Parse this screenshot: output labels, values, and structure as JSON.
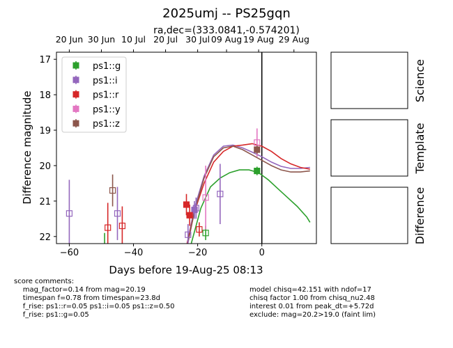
{
  "title": "2025umj -- PS25gqn",
  "subtitle": "ra,dec=(333.0841,-0.574201)",
  "chart_data": {
    "type": "scatter",
    "xlabel": "Days before 19-Aug-25 08:13",
    "ylabel": "Difference magnitude",
    "xlim": [
      -64,
      17
    ],
    "ylim": [
      22.2,
      16.8
    ],
    "y_inverted": true,
    "x_ticks": [
      -60,
      -40,
      -20,
      0
    ],
    "x_tick_labels": [
      "−60",
      "−40",
      "−20",
      "0"
    ],
    "y_ticks": [
      17,
      18,
      19,
      20,
      21,
      22
    ],
    "top_axis": {
      "ticks": [
        -60,
        -50,
        -40,
        -30,
        -20,
        -11,
        -1,
        10
      ],
      "labels": [
        "20 Jun",
        "30 Jun",
        "10 Jul",
        "20 Jul",
        "30 Jul",
        "09 Aug",
        "19 Aug",
        "29 Aug"
      ]
    },
    "reference_line_x": 0,
    "legend_position": "upper-left",
    "series": [
      {
        "name": "ps1::g",
        "color": "#2ca02c",
        "points": [
          {
            "x": -17.5,
            "y": 21.9,
            "err": 0.2,
            "filled": false
          },
          {
            "x": -1.5,
            "y": 20.15,
            "err": 0.12,
            "filled": true
          },
          {
            "x": -49,
            "y": 22.3,
            "err": 0.4,
            "filled": false
          }
        ],
        "model": [
          [
            -25,
            23.2
          ],
          [
            -22,
            22.2
          ],
          [
            -19,
            21.2
          ],
          [
            -16,
            20.6
          ],
          [
            -13,
            20.35
          ],
          [
            -10,
            20.2
          ],
          [
            -7,
            20.12
          ],
          [
            -4,
            20.12
          ],
          [
            -1,
            20.2
          ],
          [
            2,
            20.4
          ],
          [
            5,
            20.65
          ],
          [
            8,
            20.9
          ],
          [
            11,
            21.15
          ],
          [
            14,
            21.45
          ],
          [
            15,
            21.6
          ]
        ]
      },
      {
        "name": "ps1::i",
        "color": "#9467bd",
        "points": [
          {
            "x": -60,
            "y": 21.35,
            "err": 0.95,
            "filled": false
          },
          {
            "x": -45,
            "y": 21.35,
            "err": 0.75,
            "filled": false
          },
          {
            "x": -20.5,
            "y": 21.2,
            "err": 0.3,
            "filled": false
          },
          {
            "x": -23,
            "y": 21.95,
            "err": 0.3,
            "filled": false
          },
          {
            "x": -21,
            "y": 21.25,
            "err": 0.25,
            "filled": true
          },
          {
            "x": -13,
            "y": 20.8,
            "err": 0.85,
            "filled": false
          }
        ],
        "model": [
          [
            -24,
            22.5
          ],
          [
            -21,
            21.2
          ],
          [
            -18,
            20.3
          ],
          [
            -15,
            19.7
          ],
          [
            -12,
            19.45
          ],
          [
            -9,
            19.42
          ],
          [
            -6,
            19.5
          ],
          [
            -3,
            19.62
          ],
          [
            0,
            19.75
          ],
          [
            3,
            19.9
          ],
          [
            6,
            20.02
          ],
          [
            9,
            20.08
          ],
          [
            12,
            20.08
          ],
          [
            15,
            20.05
          ]
        ]
      },
      {
        "name": "ps1::r",
        "color": "#d62728",
        "points": [
          {
            "x": -48,
            "y": 21.75,
            "err": 0.7,
            "filled": false
          },
          {
            "x": -43.5,
            "y": 21.7,
            "err": 0.55,
            "filled": false
          },
          {
            "x": -23.5,
            "y": 21.1,
            "err": 0.3,
            "filled": true
          },
          {
            "x": -22.5,
            "y": 21.4,
            "err": 0.3,
            "filled": true
          },
          {
            "x": -19.5,
            "y": 21.8,
            "err": 0.2,
            "filled": false
          }
        ],
        "model": [
          [
            -24,
            22.5
          ],
          [
            -21,
            21.3
          ],
          [
            -18,
            20.5
          ],
          [
            -15,
            19.9
          ],
          [
            -12,
            19.6
          ],
          [
            -9,
            19.45
          ],
          [
            -6,
            19.42
          ],
          [
            -3,
            19.38
          ],
          [
            0,
            19.45
          ],
          [
            3,
            19.6
          ],
          [
            6,
            19.8
          ],
          [
            9,
            19.95
          ],
          [
            12,
            20.05
          ],
          [
            15,
            20.1
          ]
        ]
      },
      {
        "name": "ps1::y",
        "color": "#e377c2",
        "points": [
          {
            "x": -17.5,
            "y": 20.9,
            "err": 0.9,
            "filled": false
          },
          {
            "x": -1.5,
            "y": 19.35,
            "err": 0.4,
            "filled": false
          }
        ],
        "model": []
      },
      {
        "name": "ps1::z",
        "color": "#8c564b",
        "points": [
          {
            "x": -46.5,
            "y": 20.7,
            "err": 0.45,
            "filled": false
          },
          {
            "x": -1.5,
            "y": 19.55,
            "err": 0.12,
            "filled": true
          }
        ],
        "model": [
          [
            -24,
            22.6
          ],
          [
            -21,
            21.3
          ],
          [
            -18,
            20.35
          ],
          [
            -15,
            19.75
          ],
          [
            -12,
            19.5
          ],
          [
            -9,
            19.45
          ],
          [
            -6,
            19.55
          ],
          [
            -3,
            19.7
          ],
          [
            0,
            19.85
          ],
          [
            3,
            20.0
          ],
          [
            6,
            20.12
          ],
          [
            9,
            20.18
          ],
          [
            12,
            20.18
          ],
          [
            15,
            20.15
          ]
        ]
      }
    ]
  },
  "side_panels": [
    "Science",
    "Template",
    "Difference"
  ],
  "comments_left": "score comments:\n    mag_factor=0.14 from mag=20.19\n    timespan f=0.78 from timespan=23.8d\n    f_rise: ps1::r=0.05 ps1::i=0.05 ps1::z=0.50\n    f_rise: ps1::g=0.05",
  "comments_right": "model chisq=42.151 with ndof=17\nchisq factor 1.00 from chisq_nu2.48\ninterest 0.01 from peak_dt=+5.72d\nexclude: mag=20.2>19.0 (faint lim)"
}
